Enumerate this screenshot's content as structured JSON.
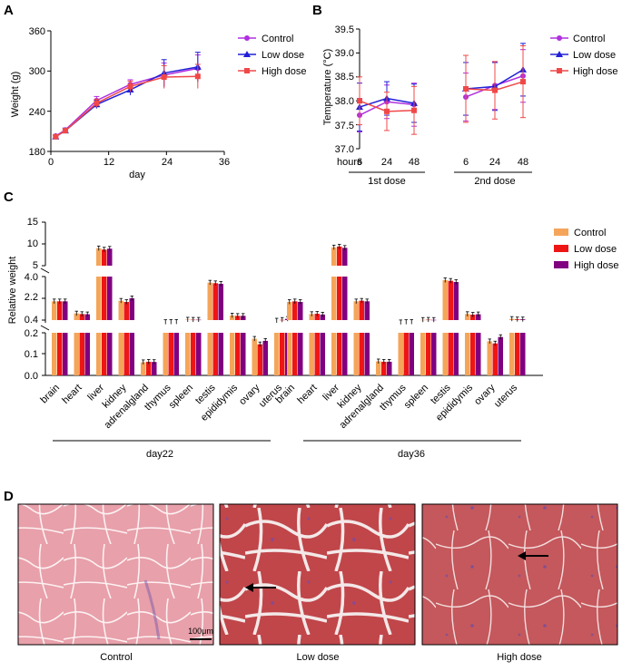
{
  "colors": {
    "control_AB": "#b030e0",
    "low_AB": "#2020d8",
    "high_AB": "#f04848",
    "control_C": "#f5a55a",
    "low_C": "#ee1515",
    "high_C": "#800080"
  },
  "panel_labels": [
    "A",
    "B",
    "C",
    "D"
  ],
  "chart_data": [
    {
      "panel": "A",
      "type": "line",
      "xlabel": "day",
      "ylabel": "Weight (g)",
      "xlim": [
        0,
        36
      ],
      "ylim": [
        180,
        360
      ],
      "xticks": [
        "0",
        "12",
        "24",
        "36"
      ],
      "yticks": [
        "180",
        "240",
        "300",
        "360"
      ],
      "legend": [
        "Control",
        "Low dose",
        "High dose"
      ],
      "x": [
        1,
        3,
        9.5,
        16.5,
        23.5,
        30.5
      ],
      "series": [
        {
          "name": "Control",
          "values": [
            203,
            212,
            256,
            280,
            294,
            304
          ],
          "err": [
            2,
            3,
            6,
            7,
            18,
            20
          ]
        },
        {
          "name": "Low dose",
          "values": [
            202,
            211,
            250,
            272,
            297,
            306
          ],
          "err": [
            2,
            3,
            6,
            8,
            20,
            22
          ]
        },
        {
          "name": "High dose",
          "values": [
            202,
            211,
            252,
            277,
            291,
            292
          ],
          "err": [
            2,
            3,
            6,
            8,
            17,
            18
          ]
        }
      ]
    },
    {
      "panel": "B",
      "type": "line",
      "ylabel": "Temperature (°C)",
      "xaxis_title": "hours",
      "ylim": [
        37,
        39.5
      ],
      "yticks": [
        "37.0",
        "37.5",
        "38.0",
        "38.5",
        "39.0",
        "39.5"
      ],
      "categories": [
        "6",
        "24",
        "48",
        "6",
        "24",
        "48"
      ],
      "groups": [
        "1st dose",
        "2nd dose"
      ],
      "legend": [
        "Control",
        "Low dose",
        "High dose"
      ],
      "series": [
        {
          "name": "Control",
          "values": [
            37.7,
            37.98,
            37.92,
            38.08,
            38.32,
            38.52
          ],
          "err": [
            0.35,
            0.35,
            0.45,
            0.5,
            0.5,
            0.55
          ]
        },
        {
          "name": "Low dose",
          "values": [
            37.87,
            38.05,
            37.95,
            38.25,
            38.3,
            38.65
          ],
          "err": [
            0.5,
            0.35,
            0.4,
            0.55,
            0.5,
            0.55
          ]
        },
        {
          "name": "High dose",
          "values": [
            38.0,
            37.78,
            37.8,
            38.25,
            38.22,
            38.4
          ],
          "err": [
            0.5,
            0.4,
            0.5,
            0.7,
            0.6,
            0.75
          ]
        }
      ]
    },
    {
      "panel": "C",
      "type": "bar",
      "ylabel": "Relative weight",
      "yticks_top": [
        "5",
        "10",
        "15"
      ],
      "yticks_mid": [
        "0.4",
        "2.2",
        "4.0"
      ],
      "yticks_bot": [
        "0.0",
        "0.1",
        "0.2"
      ],
      "categories": [
        "brain",
        "heart",
        "liver",
        "kidney",
        "adrenalgland",
        "thymus",
        "spleen",
        "testis",
        "epididymis",
        "ovary",
        "uterus"
      ],
      "groups": [
        "day22",
        "day36"
      ],
      "legend": [
        "Control",
        "Low dose",
        "High dose"
      ],
      "series": [
        {
          "name": "Control",
          "day22": [
            1.95,
            0.95,
            9.0,
            2.0,
            0.062,
            0.24,
            0.44,
            3.5,
            0.78,
            0.172,
            0.36
          ],
          "day36": [
            1.9,
            0.9,
            9.2,
            1.95,
            0.066,
            0.22,
            0.42,
            3.7,
            0.9,
            0.16,
            0.5
          ]
        },
        {
          "name": "Low dose",
          "day22": [
            1.95,
            0.9,
            8.7,
            1.9,
            0.064,
            0.25,
            0.43,
            3.45,
            0.75,
            0.146,
            0.42
          ],
          "day36": [
            1.95,
            0.92,
            9.4,
            2.0,
            0.064,
            0.24,
            0.43,
            3.65,
            0.85,
            0.15,
            0.46
          ]
        },
        {
          "name": "High dose",
          "day22": [
            1.95,
            0.88,
            8.9,
            2.2,
            0.063,
            0.26,
            0.43,
            3.4,
            0.75,
            0.162,
            0.5
          ],
          "day36": [
            1.9,
            0.86,
            9.1,
            1.95,
            0.064,
            0.25,
            0.42,
            3.55,
            0.88,
            0.18,
            0.46
          ]
        }
      ]
    }
  ],
  "panel_D": {
    "captions": [
      "Control",
      "Low dose",
      "High dose"
    ],
    "scale_bar": "100μm"
  }
}
